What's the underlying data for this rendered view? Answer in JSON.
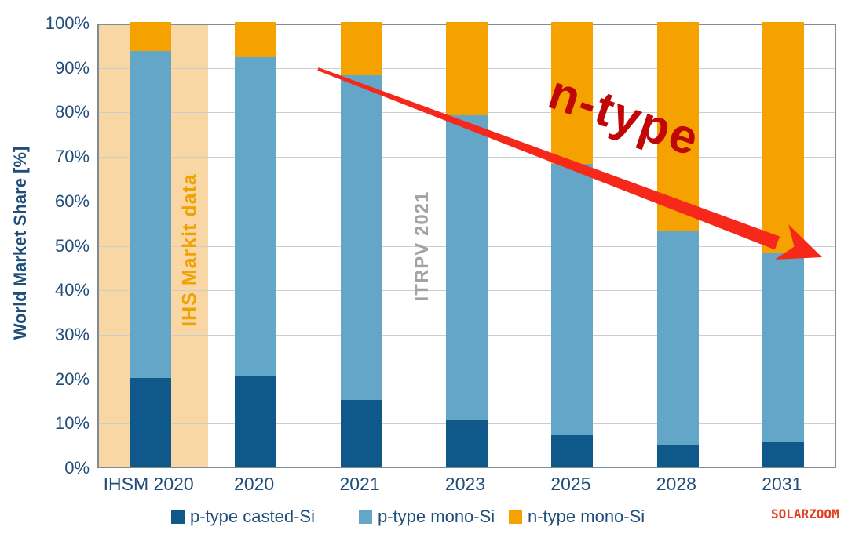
{
  "watermark": "SOLARZOOM",
  "watermark_color": "#E04020",
  "chart_data": {
    "type": "bar",
    "stacked": true,
    "title": "",
    "xlabel": "",
    "ylabel": "World Market Share [%]",
    "ylim": [
      0,
      100
    ],
    "ytick_step": 10,
    "ytick_suffix": "%",
    "grid": "horizontal",
    "legend_position": "bottom",
    "categories": [
      "IHSM 2020",
      "2020",
      "2021",
      "2023",
      "2025",
      "2028",
      "2031"
    ],
    "series": [
      {
        "name": "p-type casted-Si",
        "color": "#0E598A",
        "values": [
          20,
          20.5,
          15,
          10.5,
          7,
          5,
          5.5
        ]
      },
      {
        "name": "p-type mono-Si",
        "color": "#63A6C7",
        "values": [
          73.5,
          71.5,
          73,
          68.5,
          61,
          48,
          42.5
        ]
      },
      {
        "name": "n-type mono-Si",
        "color": "#F5A201",
        "values": [
          6.5,
          8,
          12,
          21,
          32,
          47,
          52
        ]
      }
    ],
    "annotations": {
      "band": {
        "label": "IHS Markit data",
        "category": "IHSM 2020",
        "fill": "#F8D7A4",
        "text_color": "#F0A203"
      },
      "source": {
        "text": "ITRPV 2021",
        "color": "#A3A3A3"
      },
      "trend": {
        "text": "n-type",
        "text_color": "#C00606",
        "arrow_color": "#F6281A",
        "direction": "down-right"
      }
    }
  }
}
